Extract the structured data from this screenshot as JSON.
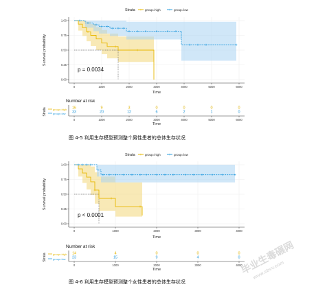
{
  "figure1": {
    "legend": {
      "title": "Strata",
      "high": "group=high",
      "low": "group=low"
    },
    "ylabel": "Survival probability",
    "xlabel": "Time",
    "pvalue": "p = 0.0034",
    "risk_title": "Number at risk",
    "risk_ylabel": "Strata",
    "risk_xlabel": "Time",
    "high_counts": [
      "16",
      "9",
      "3",
      "0",
      "0",
      "0",
      "0"
    ],
    "low_counts": [
      "33",
      "20",
      "12",
      "6",
      "2",
      "1",
      "0"
    ],
    "caption": "图 4-5 利用生存模型预测整个男性患者的总体生存状况"
  },
  "figure2": {
    "legend": {
      "title": "Strata",
      "high": "group=high",
      "low": "group=low"
    },
    "ylabel": "Survival probability",
    "xlabel": "Time",
    "pvalue": "p < 0.0001",
    "risk_title": "Number at risk",
    "risk_ylabel": "Strata",
    "risk_xlabel": "Time",
    "high_counts": [
      "14",
      "4",
      "0",
      "0",
      "0"
    ],
    "low_counts": [
      "23",
      "15",
      "9",
      "4",
      "0"
    ],
    "caption": "图 4-6 利用生存模型预测整个女性患者的总体生存状况"
  },
  "watermark": {
    "line1": "毕业生毒碾网",
    "line2": "www.sbvv.com"
  },
  "colors": {
    "high": "#E7B800",
    "low": "#2E9FDF",
    "high_fill": "#F3DB85",
    "low_fill": "#A9D4F2"
  },
  "chart_data": [
    {
      "type": "line",
      "title": "",
      "xlabel": "Time",
      "ylabel": "Survival probability",
      "xlim": [
        0,
        6000
      ],
      "ylim": [
        0,
        1
      ],
      "x_ticks": [
        0,
        1000,
        2000,
        3000,
        4000,
        5000,
        6000
      ],
      "y_ticks": [
        0,
        0.25,
        0.5,
        0.75,
        1.0
      ],
      "series": [
        {
          "name": "group=high",
          "x": [
            0,
            150,
            300,
            450,
            600,
            800,
            1000,
            1200,
            1600,
            2000,
            2900,
            2900
          ],
          "y": [
            1.0,
            0.94,
            0.88,
            0.81,
            0.75,
            0.69,
            0.62,
            0.56,
            0.5,
            0.5,
            0.5,
            0.0
          ],
          "ci_lower": [
            1.0,
            0.83,
            0.74,
            0.65,
            0.57,
            0.5,
            0.43,
            0.36,
            0.3,
            0.3,
            0.3,
            0.0
          ],
          "ci_upper": [
            1.0,
            1.0,
            1.0,
            0.98,
            0.94,
            0.89,
            0.84,
            0.78,
            0.73,
            0.73,
            0.73,
            0.73
          ],
          "censor_x": [
            500,
            1500,
            2300
          ]
        },
        {
          "name": "group=low",
          "x": [
            0,
            400,
            700,
            900,
            1300,
            1900,
            3900,
            5900
          ],
          "y": [
            1.0,
            0.96,
            0.93,
            0.9,
            0.87,
            0.82,
            0.59,
            0.59
          ],
          "ci_lower": [
            1.0,
            0.88,
            0.82,
            0.78,
            0.74,
            0.68,
            0.32,
            0.32
          ],
          "ci_upper": [
            1.0,
            1.0,
            1.0,
            1.0,
            1.0,
            0.98,
            0.98,
            0.98
          ],
          "censor_x": [
            200,
            500,
            800,
            1000,
            1200,
            1400,
            1600,
            1800,
            2000,
            2300,
            2600,
            3000,
            3400,
            3700,
            4200,
            4500,
            4800,
            5900
          ]
        }
      ],
      "median_survival": {
        "group=high": 1600
      },
      "pvalue": "p = 0.0034"
    },
    {
      "type": "line",
      "title": "",
      "xlabel": "Time",
      "ylabel": "Survival probability",
      "xlim": [
        0,
        4000
      ],
      "ylim": [
        0,
        1
      ],
      "x_ticks": [
        0,
        1000,
        2000,
        3000,
        4000
      ],
      "y_ticks": [
        0,
        0.25,
        0.5,
        0.75,
        1.0
      ],
      "series": [
        {
          "name": "group=high",
          "x": [
            0,
            100,
            200,
            300,
            400,
            500,
            600,
            1000,
            1600,
            1650
          ],
          "y": [
            1.0,
            0.93,
            0.86,
            0.79,
            0.71,
            0.57,
            0.43,
            0.29,
            0.29,
            0.14
          ],
          "ci_lower": [
            1.0,
            0.8,
            0.69,
            0.58,
            0.49,
            0.34,
            0.22,
            0.12,
            0.12,
            0.02
          ],
          "ci_upper": [
            1.0,
            1.0,
            1.0,
            1.0,
            0.97,
            0.87,
            0.8,
            0.7,
            0.7,
            0.7
          ],
          "censor_x": [
            500,
            900,
            1600
          ]
        },
        {
          "name": "group=low",
          "x": [
            0,
            550,
            650,
            3900
          ],
          "y": [
            1.0,
            0.91,
            0.83,
            0.83
          ],
          "ci_lower": [
            1.0,
            0.8,
            0.7,
            0.7
          ],
          "ci_upper": [
            1.0,
            1.0,
            1.0,
            1.0
          ],
          "censor_x": [
            100,
            200,
            300,
            400,
            700,
            850,
            1000,
            1200,
            1400,
            1600,
            1750,
            2000,
            2200,
            2400,
            2700,
            2900,
            3100,
            3350,
            3600,
            3900
          ]
        }
      ],
      "median_survival": {
        "group=high": 600
      },
      "pvalue": "p < 0.0001"
    }
  ]
}
